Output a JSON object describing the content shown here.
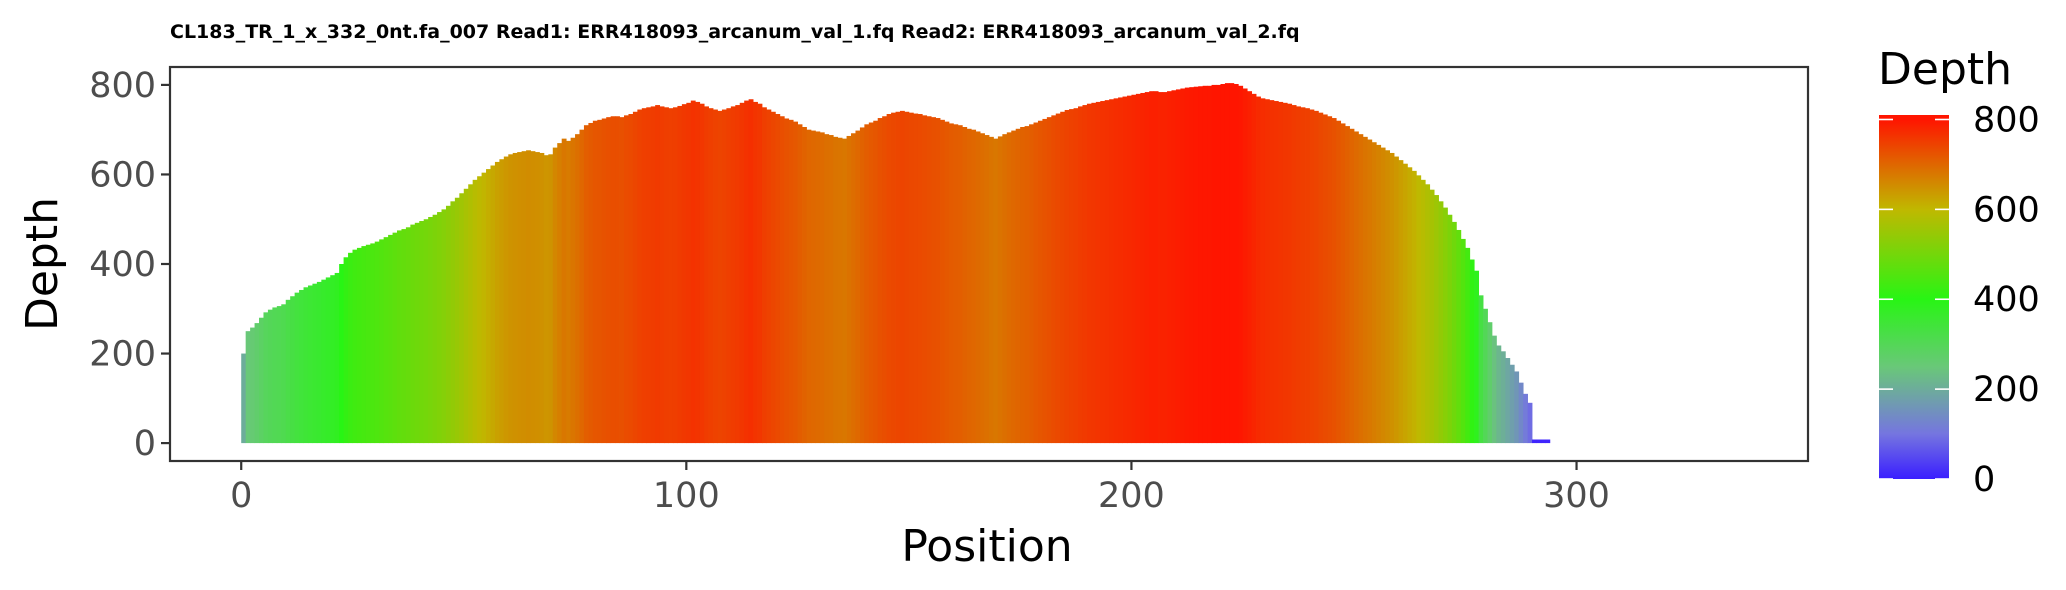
{
  "chart_data": {
    "type": "bar",
    "title": "CL183_TR_1_x_332_0nt.fa_007 Read1: ERR418093_arcanum_val_1.fq Read2: ERR418093_arcanum_val_2.fq",
    "xlabel": "Position",
    "ylabel": "Depth",
    "xlim": [
      -16,
      352
    ],
    "ylim": [
      -40,
      840
    ],
    "x_ticks": [
      0,
      100,
      200,
      300
    ],
    "y_ticks": [
      0,
      200,
      400,
      600,
      800
    ],
    "grid": false,
    "legend": {
      "title": "Depth",
      "position": "right",
      "type": "colorbar",
      "ticks": [
        0,
        200,
        400,
        600,
        800
      ],
      "range": [
        0,
        810
      ],
      "colors": [
        {
          "value": 0,
          "color": "#3A1EFF"
        },
        {
          "value": 100,
          "color": "#7575E0"
        },
        {
          "value": 250,
          "color": "#69C878"
        },
        {
          "value": 400,
          "color": "#28F514"
        },
        {
          "value": 600,
          "color": "#C0B800"
        },
        {
          "value": 800,
          "color": "#FF1500"
        }
      ]
    },
    "series": [
      {
        "x_start": 0,
        "values": [
          200,
          250,
          258,
          268,
          280,
          292,
          298,
          303,
          306,
          310,
          320,
          328,
          336,
          342,
          348,
          352,
          356,
          360,
          365,
          370,
          375,
          380,
          400,
          415,
          425,
          432,
          436,
          440,
          443,
          446,
          450,
          455,
          460,
          465,
          470,
          475,
          478,
          482,
          488,
          492,
          496,
          500,
          505,
          510,
          516,
          522,
          530,
          540,
          548,
          558,
          568,
          578,
          588,
          596,
          604,
          612,
          620,
          628,
          634,
          640,
          645,
          648,
          650,
          652,
          654,
          652,
          650,
          648,
          643,
          645,
          660,
          670,
          680,
          675,
          682,
          690,
          700,
          710,
          715,
          720,
          722,
          725,
          728,
          730,
          730,
          728,
          732,
          735,
          740,
          745,
          748,
          750,
          752,
          755,
          752,
          750,
          748,
          750,
          753,
          757,
          760,
          765,
          762,
          758,
          752,
          748,
          745,
          742,
          745,
          748,
          752,
          755,
          760,
          765,
          768,
          762,
          758,
          750,
          745,
          740,
          735,
          730,
          725,
          722,
          718,
          712,
          706,
          700,
          698,
          696,
          694,
          690,
          688,
          684,
          682,
          680,
          686,
          692,
          698,
          705,
          712,
          716,
          720,
          726,
          730,
          735,
          738,
          740,
          742,
          740,
          738,
          736,
          735,
          732,
          730,
          728,
          726,
          722,
          718,
          714,
          712,
          710,
          706,
          702,
          700,
          696,
          692,
          688,
          684,
          680,
          685,
          690,
          694,
          698,
          702,
          706,
          708,
          712,
          716,
          720,
          724,
          728,
          732,
          736,
          740,
          744,
          746,
          748,
          752,
          755,
          758,
          760,
          762,
          764,
          766,
          768,
          770,
          772,
          774,
          776,
          778,
          780,
          782,
          784,
          786,
          786,
          784,
          784,
          786,
          788,
          790,
          792,
          794,
          795,
          796,
          797,
          798,
          798,
          800,
          800,
          802,
          804,
          804,
          802,
          798,
          792,
          786,
          780,
          774,
          770,
          768,
          766,
          764,
          762,
          760,
          758,
          755,
          752,
          750,
          748,
          745,
          742,
          738,
          734,
          730,
          726,
          720,
          714,
          708,
          702,
          696,
          690,
          684,
          678,
          672,
          666,
          660,
          654,
          648,
          640,
          632,
          624,
          616,
          608,
          598,
          588,
          578,
          566,
          554,
          540,
          526,
          510,
          494,
          476,
          456,
          436,
          410,
          385,
          330,
          300,
          270,
          240,
          218,
          205,
          190,
          175,
          160,
          135,
          110,
          90,
          8,
          8,
          8,
          8
        ]
      }
    ]
  }
}
